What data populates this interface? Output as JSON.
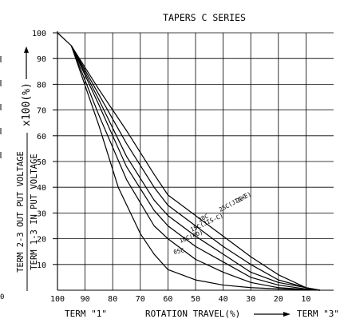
{
  "chart_data": {
    "type": "line",
    "title": "TAPERS C SERIES",
    "xlabel": "ROTATION TRAVEL(%)",
    "x_left_label": "TERM \"1\"",
    "x_right_label": "TERM \"3\"",
    "ylabel_numerator": "TERM 2-3 OUT PUT VOLTAGE",
    "ylabel_denominator": "TERM 1-3 IN PUT VOLTAGE",
    "ylabel_factor": "x100(%)",
    "xlim": [
      100,
      0
    ],
    "ylim": [
      0,
      100
    ],
    "x_ticks": [
      "100",
      "90",
      "80",
      "70",
      "60",
      "50",
      "40",
      "30",
      "20",
      "10"
    ],
    "y_ticks": [
      "100",
      "90",
      "80",
      "70",
      "60",
      "50",
      "40",
      "30",
      "20",
      "10"
    ],
    "grid": true,
    "series": [
      {
        "name": "30C",
        "points": [
          [
            95,
            95
          ],
          [
            85,
            78
          ],
          [
            75,
            62
          ],
          [
            65,
            45
          ],
          [
            60,
            37
          ],
          [
            50,
            29
          ],
          [
            40,
            21
          ],
          [
            30,
            13
          ],
          [
            20,
            6
          ],
          [
            10,
            1
          ],
          [
            5,
            0
          ]
        ]
      },
      {
        "name": "25C(JIS-E)",
        "points": [
          [
            95,
            95
          ],
          [
            85,
            76
          ],
          [
            75,
            57
          ],
          [
            65,
            40
          ],
          [
            60,
            33
          ],
          [
            50,
            25
          ],
          [
            40,
            17
          ],
          [
            30,
            10
          ],
          [
            20,
            4
          ],
          [
            10,
            1
          ],
          [
            5,
            0
          ]
        ]
      },
      {
        "name": "20C",
        "points": [
          [
            95,
            95
          ],
          [
            85,
            74
          ],
          [
            75,
            52
          ],
          [
            65,
            35
          ],
          [
            60,
            29
          ],
          [
            50,
            21
          ],
          [
            40,
            14
          ],
          [
            30,
            7
          ],
          [
            20,
            3
          ],
          [
            10,
            1
          ],
          [
            5,
            0
          ]
        ]
      },
      {
        "name": "15C(JIS-C)",
        "points": [
          [
            95,
            95
          ],
          [
            85,
            72
          ],
          [
            75,
            48
          ],
          [
            65,
            31
          ],
          [
            60,
            25
          ],
          [
            50,
            17
          ],
          [
            40,
            11
          ],
          [
            30,
            5
          ],
          [
            20,
            2
          ],
          [
            10,
            0.5
          ],
          [
            5,
            0
          ]
        ]
      },
      {
        "name": "10C(RD)",
        "points": [
          [
            95,
            95
          ],
          [
            85,
            68
          ],
          [
            75,
            43
          ],
          [
            65,
            25
          ],
          [
            60,
            20
          ],
          [
            50,
            12
          ],
          [
            40,
            7
          ],
          [
            30,
            3
          ],
          [
            20,
            1
          ],
          [
            10,
            0.3
          ],
          [
            5,
            0
          ]
        ]
      },
      {
        "name": "05C",
        "points": [
          [
            95,
            95
          ],
          [
            85,
            64
          ],
          [
            78,
            40
          ],
          [
            70,
            22
          ],
          [
            65,
            14
          ],
          [
            60,
            8
          ],
          [
            50,
            4
          ],
          [
            40,
            2
          ],
          [
            30,
            1
          ],
          [
            20,
            0.5
          ],
          [
            10,
            0.2
          ],
          [
            5,
            0
          ]
        ]
      }
    ]
  }
}
